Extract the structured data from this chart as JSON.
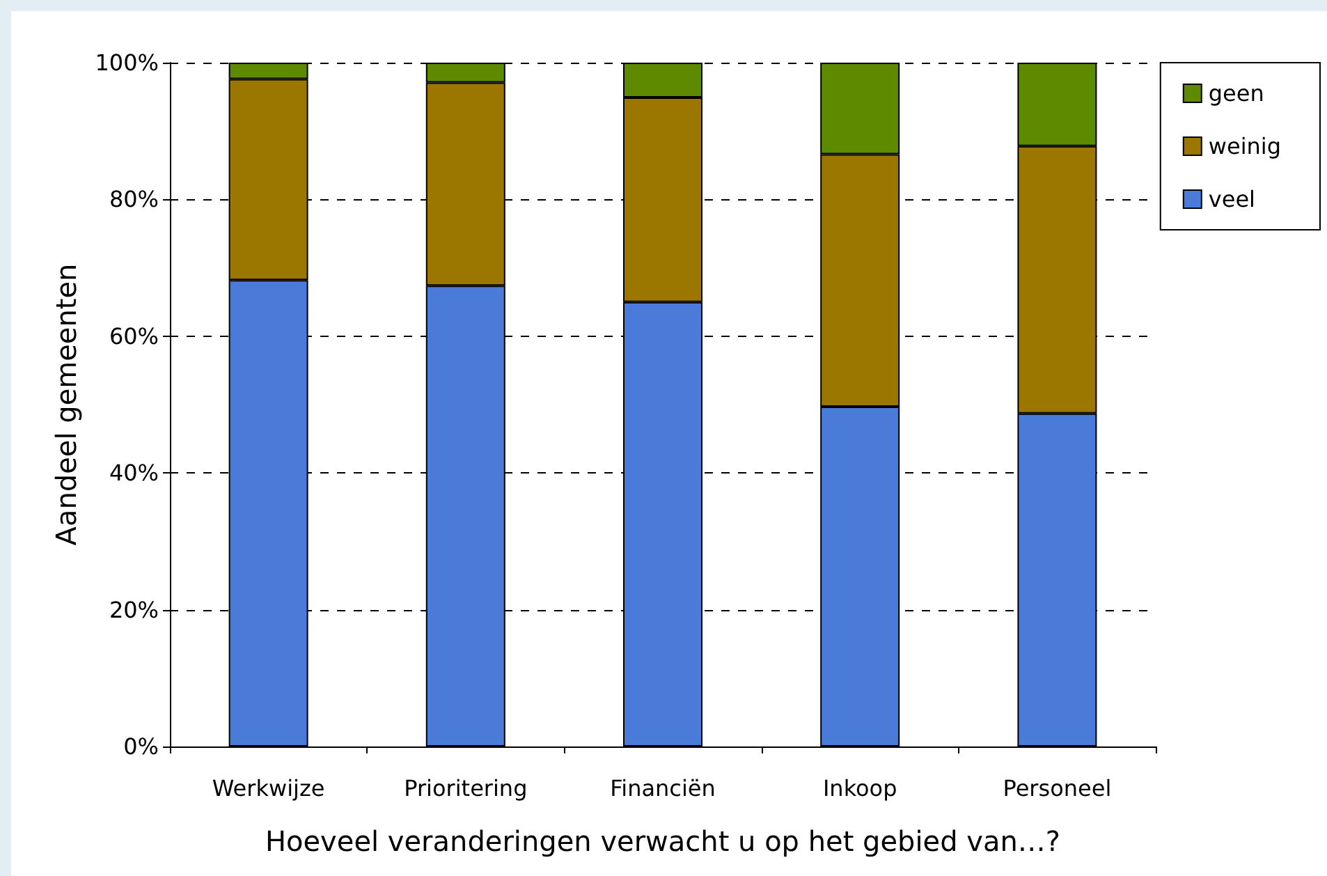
{
  "chart_data": {
    "type": "bar",
    "stacked": true,
    "xlabel": "Hoeveel veranderingen verwacht u op het gebied van…?",
    "ylabel": "Aandeel gemeenten",
    "categories": [
      "Werkwijze",
      "Prioritering",
      "Financiën",
      "Inkoop",
      "Personeel"
    ],
    "series": [
      {
        "name": "veel",
        "color": "#4a7bd8",
        "values": [
          68.2,
          67.4,
          65.0,
          49.7,
          48.7
        ]
      },
      {
        "name": "weinig",
        "color": "#9c7700",
        "values": [
          29.4,
          29.7,
          29.9,
          36.9,
          39.1
        ]
      },
      {
        "name": "geen",
        "color": "#5e8a00",
        "values": [
          2.4,
          2.9,
          5.1,
          13.4,
          12.2
        ]
      }
    ],
    "ylim": [
      0,
      100
    ],
    "yticks": [
      {
        "value": 0,
        "label": "0%"
      },
      {
        "value": 20,
        "label": "20%"
      },
      {
        "value": 40,
        "label": "40%"
      },
      {
        "value": 60,
        "label": "60%"
      },
      {
        "value": 80,
        "label": "80%"
      },
      {
        "value": 100,
        "label": "100%"
      }
    ],
    "grid": "y",
    "legend": "top right"
  }
}
